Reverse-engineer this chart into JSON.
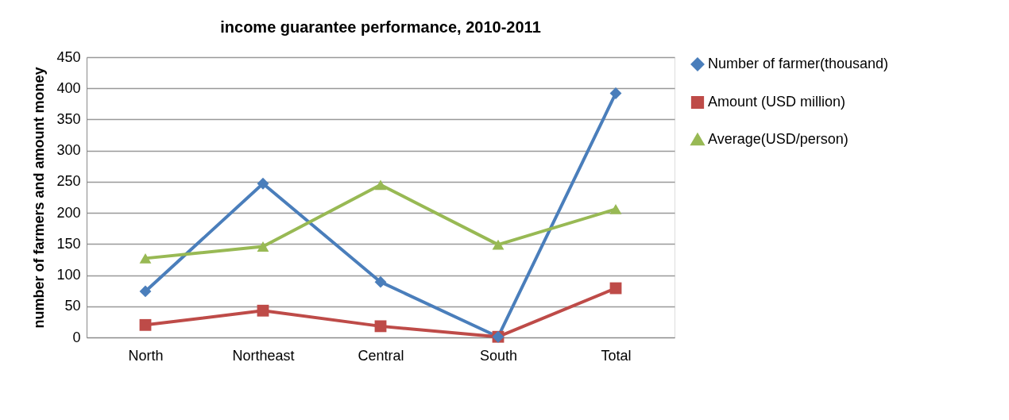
{
  "chart_data": {
    "type": "line",
    "title": "income guarantee performance, 2010-2011",
    "ylabel": "number of farmers and amount money",
    "categories": [
      "North",
      "Northeast",
      "Central",
      "South",
      "Total"
    ],
    "series": [
      {
        "name": "Number of farmer(thousand)",
        "color": "#4a7ebb",
        "marker": "diamond",
        "values": [
          74,
          247,
          89,
          1,
          392
        ]
      },
      {
        "name": "Amount (USD million)",
        "color": "#be4b48",
        "marker": "square",
        "values": [
          20,
          43,
          18,
          1,
          79
        ]
      },
      {
        "name": "Average(USD/person)",
        "color": "#98b954",
        "marker": "triangle",
        "values": [
          127,
          146,
          245,
          149,
          206
        ]
      }
    ],
    "ylim": [
      0,
      450
    ],
    "yticks": [
      0,
      50,
      100,
      150,
      200,
      250,
      300,
      350,
      400,
      450
    ],
    "grid": "y",
    "legend": "right",
    "line_style": "solid"
  }
}
